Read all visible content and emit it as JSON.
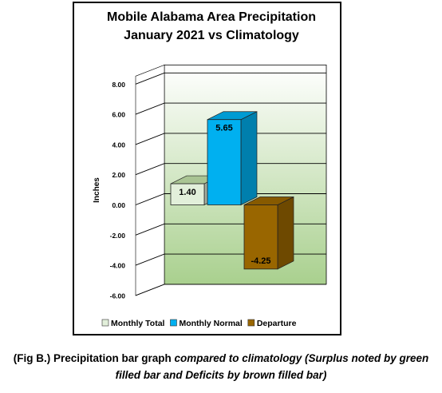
{
  "chart_data": {
    "type": "bar",
    "title_line1": "Mobile Alabama Area Precipitation",
    "title_line2": "January 2021 vs Climatology",
    "ylabel": "Inches",
    "ylim": [
      -6,
      8
    ],
    "yticks": [
      "8.00",
      "6.00",
      "4.00",
      "2.00",
      "0.00",
      "-2.00",
      "-4.00",
      "-6.00"
    ],
    "grid": true,
    "legend_position": "bottom",
    "series": [
      {
        "name": "Monthly Total",
        "value": 1.4,
        "label": "1.40",
        "color": "#e2efda"
      },
      {
        "name": "Monthly Normal",
        "value": 5.65,
        "label": "5.65",
        "color": "#00b0f0"
      },
      {
        "name": "Departure",
        "value": -4.25,
        "label": "-4.25",
        "color": "#996600"
      }
    ]
  },
  "caption": {
    "part1": "(Fig B.) Precipitation bar graph ",
    "part2": "compared to climatology (Surplus noted by green filled bar and Deficits by brown filled bar)"
  }
}
